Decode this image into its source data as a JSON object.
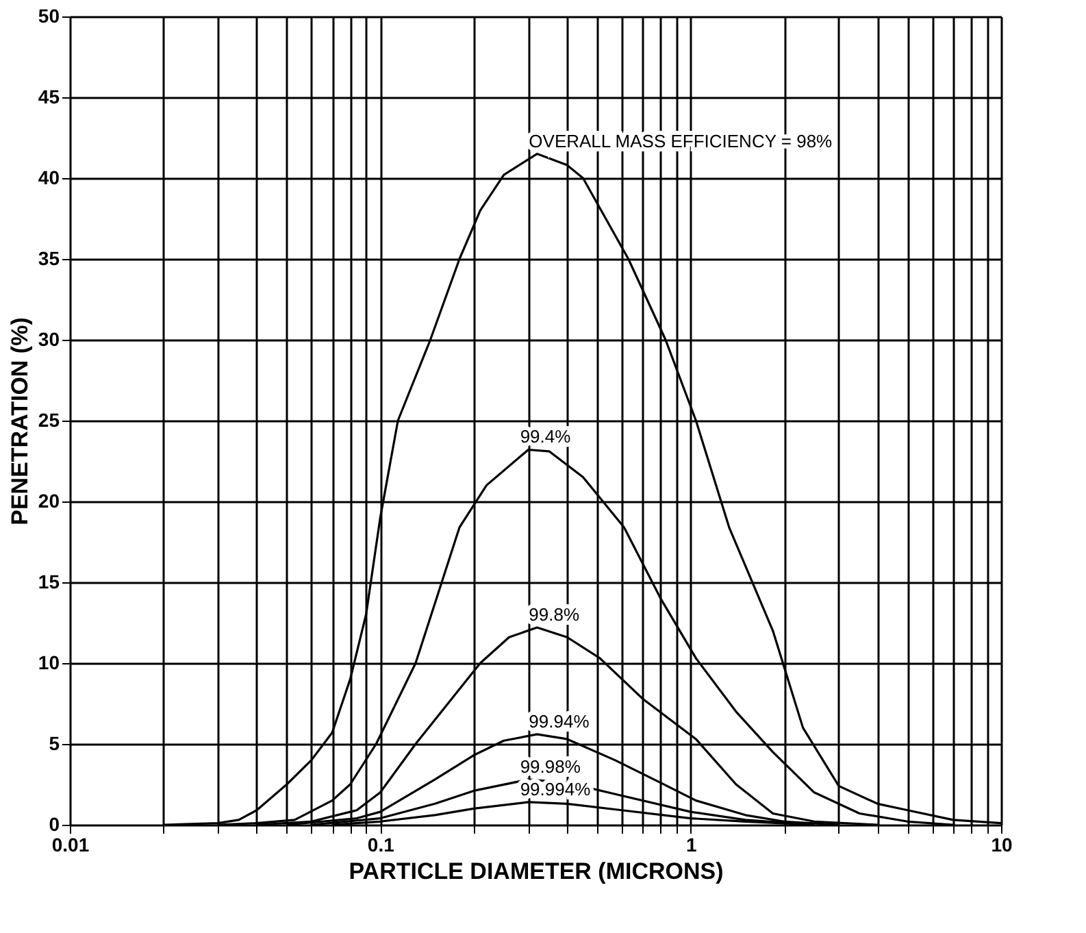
{
  "chart_data": {
    "type": "line",
    "xlabel": "PARTICLE DIAMETER (MICRONS)",
    "ylabel": "PENETRATION (%)",
    "log": "x",
    "xlim": [
      0.01,
      10
    ],
    "ylim": [
      0,
      50
    ],
    "xticks": [
      0.01,
      {
        "value": 0.02,
        "label": null
      },
      {
        "value": 0.03,
        "label": null
      },
      {
        "value": 0.04,
        "label": null
      },
      {
        "value": 0.05,
        "label": null
      },
      {
        "value": 0.06,
        "label": null
      },
      {
        "value": 0.07,
        "label": null
      },
      {
        "value": 0.08,
        "label": null
      },
      {
        "value": 0.09,
        "label": null
      },
      0.1,
      {
        "value": 0.2,
        "label": null
      },
      {
        "value": 0.3,
        "label": null
      },
      {
        "value": 0.4,
        "label": null
      },
      {
        "value": 0.5,
        "label": null
      },
      {
        "value": 0.6,
        "label": null
      },
      {
        "value": 0.7,
        "label": null
      },
      {
        "value": 0.8,
        "label": null
      },
      {
        "value": 0.9,
        "label": null
      },
      1,
      {
        "value": 2,
        "label": null
      },
      {
        "value": 3,
        "label": null
      },
      {
        "value": 4,
        "label": null
      },
      {
        "value": 5,
        "label": null
      },
      {
        "value": 6,
        "label": null
      },
      {
        "value": 7,
        "label": null
      },
      {
        "value": 8,
        "label": null
      },
      {
        "value": 9,
        "label": null
      },
      10
    ],
    "yticks": [
      0,
      5,
      10,
      15,
      20,
      25,
      30,
      35,
      40,
      45,
      50
    ],
    "grid": true,
    "marker": "none",
    "line_style": "solid",
    "series": [
      {
        "name": "OVERALL MASS EFFICIENCY = 98%",
        "color": "#000000",
        "x": [
          0.02,
          0.03,
          0.035,
          0.04,
          0.05,
          0.06,
          0.07,
          0.08,
          0.09,
          0.1,
          0.114,
          0.145,
          0.18,
          0.21,
          0.25,
          0.32,
          0.4,
          0.45,
          0.63,
          0.83,
          1.04,
          1.33,
          1.84,
          2.3,
          3,
          4,
          5,
          7,
          10
        ],
        "values": [
          0,
          0.1,
          0.3,
          0.9,
          2.5,
          4,
          5.7,
          9,
          13,
          19,
          25,
          30,
          35,
          38,
          40.2,
          41.5,
          40.8,
          40,
          35,
          30,
          25,
          18.4,
          12,
          6,
          2.4,
          1.3,
          0.9,
          0.3,
          0.1
        ]
      },
      {
        "name": "99.4%",
        "color": "#000000",
        "x": [
          0.03,
          0.04,
          0.053,
          0.07,
          0.08,
          0.097,
          0.13,
          0.18,
          0.22,
          0.3,
          0.35,
          0.45,
          0.61,
          0.8,
          1.04,
          1.4,
          1.84,
          2.5,
          3.5,
          5,
          7
        ],
        "values": [
          0,
          0.1,
          0.3,
          1.5,
          2.5,
          5,
          10,
          18.4,
          21,
          23.2,
          23.1,
          21.5,
          18.4,
          14,
          10.3,
          7,
          4.5,
          2,
          0.7,
          0.2,
          0
        ]
      },
      {
        "name": "99.8%",
        "color": "#000000",
        "x": [
          0.04,
          0.06,
          0.084,
          0.1,
          0.13,
          0.17,
          0.21,
          0.26,
          0.32,
          0.4,
          0.51,
          0.7,
          1.04,
          1.4,
          1.84,
          2.5,
          4
        ],
        "values": [
          0,
          0.2,
          0.9,
          2,
          5,
          7.8,
          10,
          11.6,
          12.2,
          11.6,
          10.3,
          7.8,
          5.3,
          2.5,
          0.7,
          0.2,
          0
        ]
      },
      {
        "name": "99.94%",
        "color": "#000000",
        "x": [
          0.05,
          0.084,
          0.1,
          0.15,
          0.2,
          0.25,
          0.32,
          0.4,
          0.57,
          0.8,
          1.04,
          1.5,
          2,
          3
        ],
        "values": [
          0,
          0.4,
          0.8,
          2.8,
          4.3,
          5.2,
          5.6,
          5.3,
          4,
          2.6,
          1.5,
          0.6,
          0.2,
          0
        ]
      },
      {
        "name": "99.98%",
        "color": "#000000",
        "x": [
          0.06,
          0.1,
          0.15,
          0.2,
          0.3,
          0.4,
          0.6,
          1,
          1.5,
          2.5
        ],
        "values": [
          0,
          0.4,
          1.3,
          2.1,
          2.8,
          2.6,
          1.8,
          0.8,
          0.3,
          0
        ]
      },
      {
        "name": "99.994%",
        "color": "#000000",
        "x": [
          0.07,
          0.1,
          0.15,
          0.2,
          0.3,
          0.4,
          0.6,
          1,
          1.5,
          2.5
        ],
        "values": [
          0,
          0.2,
          0.6,
          1.0,
          1.4,
          1.3,
          0.9,
          0.4,
          0.2,
          0
        ]
      }
    ]
  }
}
